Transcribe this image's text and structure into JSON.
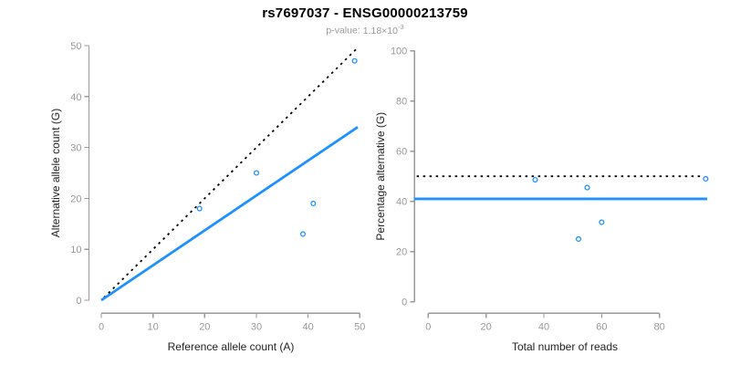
{
  "title": "rs7697037 - ENSG00000213759",
  "subtitle": {
    "label": "p-value:",
    "mantissa": "1.18×10",
    "exponent": "-3"
  },
  "colors": {
    "accent_blue": "#1E90FF",
    "line_black": "#000000",
    "axis_gray": "#999999",
    "label_dark": "#222222",
    "subtitle_gray": "#999999"
  },
  "chart_data": [
    {
      "type": "scatter",
      "title": "",
      "xlabel": "Reference allele count (A)",
      "ylabel": "Alternative allele count (G)",
      "xlim": [
        0,
        50
      ],
      "ylim": [
        0,
        50
      ],
      "xticks": [
        0,
        10,
        20,
        30,
        40,
        50
      ],
      "yticks": [
        0,
        10,
        20,
        30,
        40,
        50
      ],
      "grid": false,
      "legend": "none",
      "points": [
        [
          19,
          18
        ],
        [
          30,
          25
        ],
        [
          39,
          13
        ],
        [
          41,
          19
        ],
        [
          49,
          47
        ]
      ],
      "lines": [
        {
          "name": "identity-dotted-line",
          "style": "dotted",
          "color": "#000000",
          "x1": 0.5,
          "y1": 0.5,
          "x2": 49.4,
          "y2": 49.4
        },
        {
          "name": "blue-trend-line",
          "style": "solid",
          "color": "#1E90FF",
          "x1": 0,
          "y1": 0,
          "x2": 49.6,
          "y2": 34
        }
      ]
    },
    {
      "type": "scatter",
      "title": "",
      "xlabel": "Total number of reads",
      "ylabel": "Percentage alternative (G)",
      "xlim": [
        0,
        100
      ],
      "ylim": [
        0,
        100
      ],
      "xticks": [
        0,
        20,
        40,
        60,
        80
      ],
      "yticks": [
        0,
        20,
        40,
        60,
        80,
        100
      ],
      "grid": false,
      "legend": "none",
      "points": [
        [
          37,
          48.6
        ],
        [
          52,
          25
        ],
        [
          55,
          45.5
        ],
        [
          60,
          31.7
        ],
        [
          96,
          49
        ]
      ],
      "lines": [
        {
          "name": "fifty-percent-dotted-line",
          "style": "dotted",
          "color": "#000000",
          "x1": -4,
          "y1": 50,
          "x2": 95,
          "y2": 50
        },
        {
          "name": "blue-mean-percentage-line",
          "style": "solid",
          "color": "#1E90FF",
          "x1": -5,
          "y1": 41,
          "x2": 96.5,
          "y2": 41
        }
      ]
    }
  ]
}
